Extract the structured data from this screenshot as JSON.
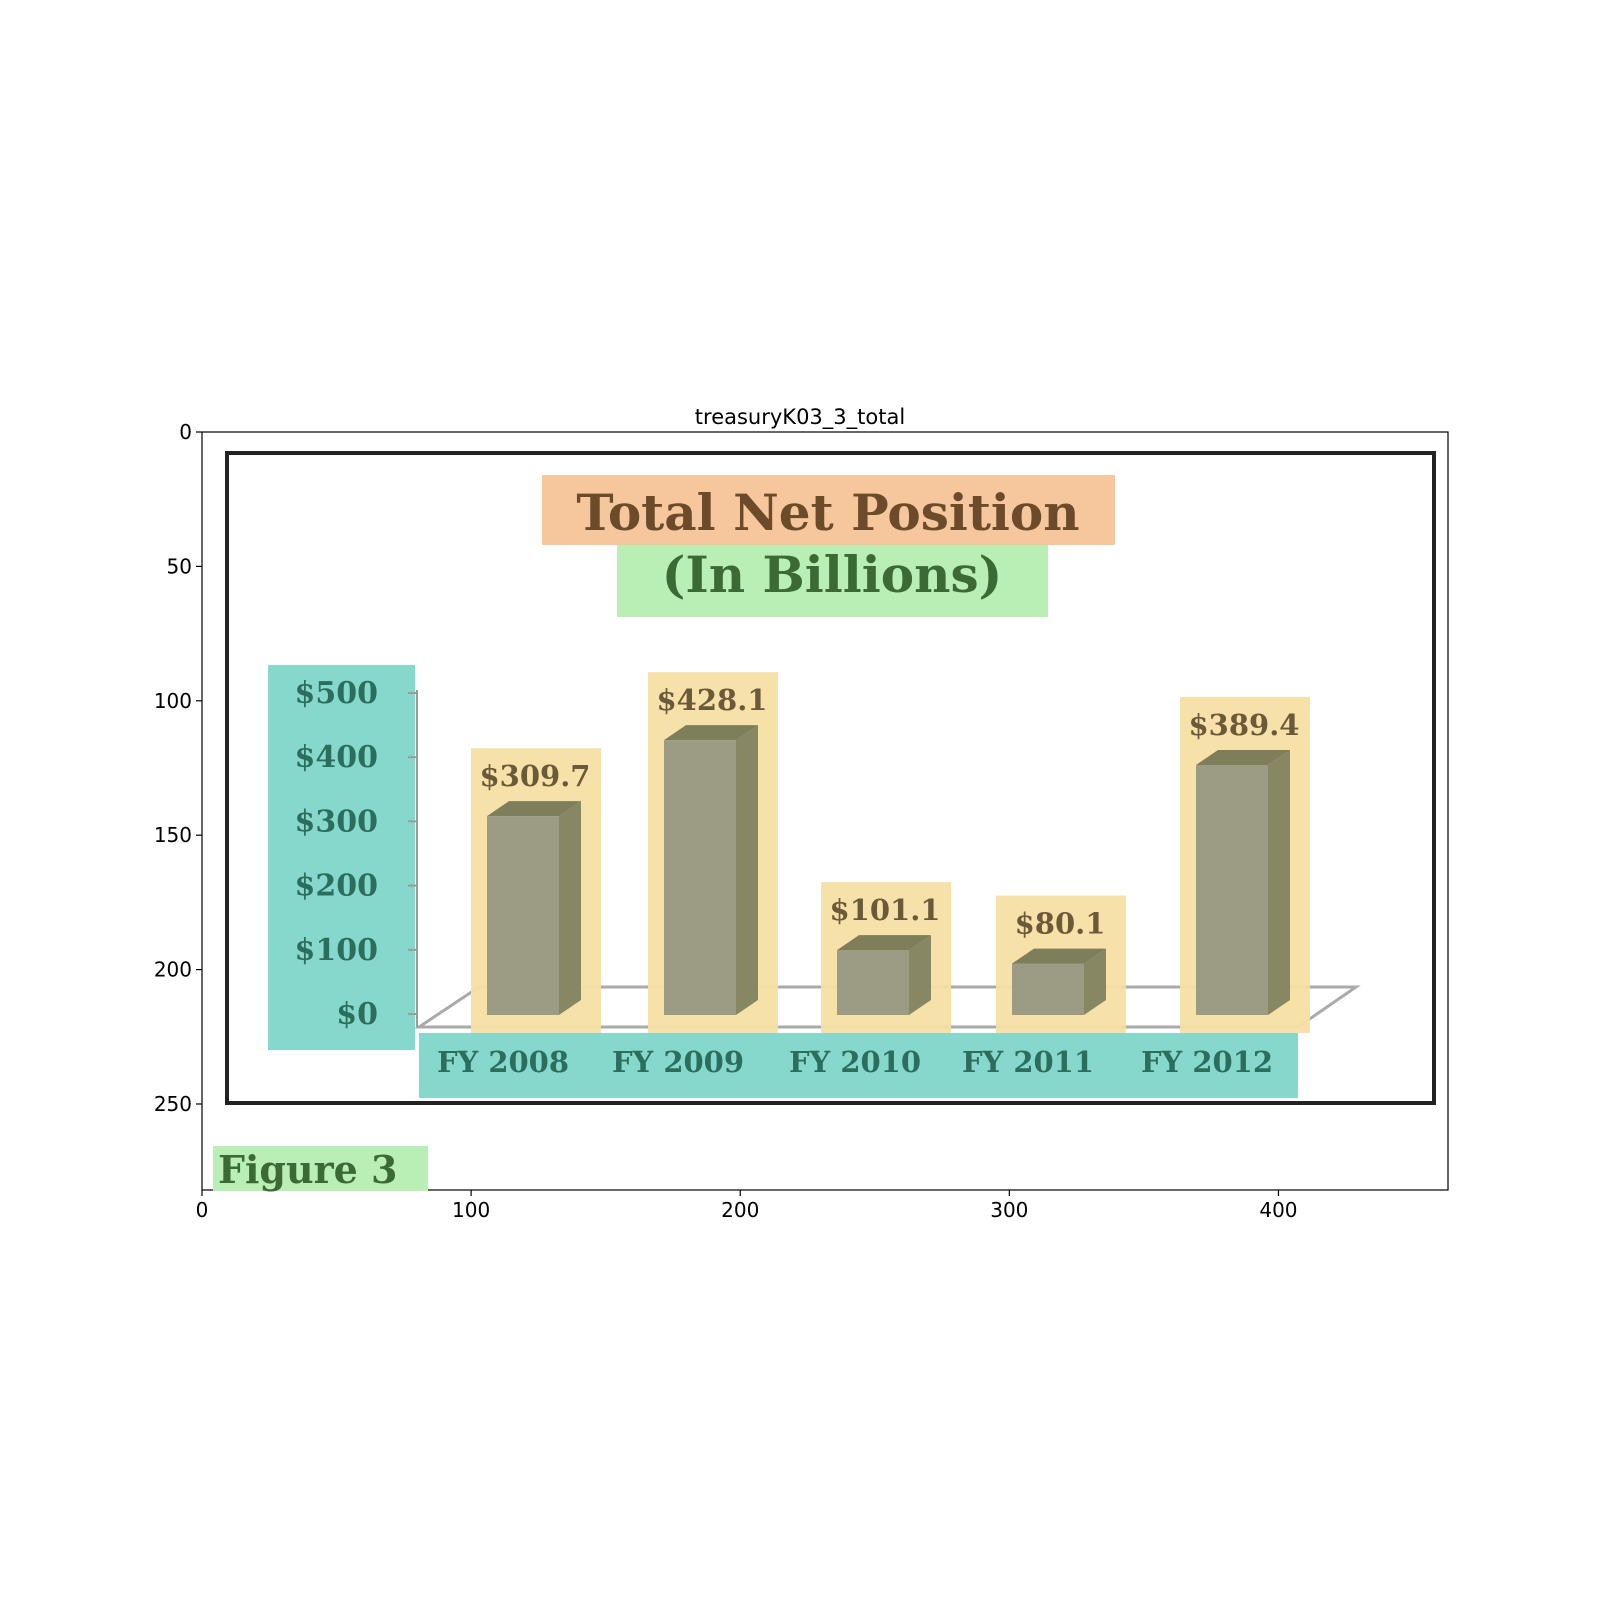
{
  "plot": {
    "title": "treasuryK03_3_total",
    "x_ticks": [
      "0",
      "100",
      "200",
      "300",
      "400"
    ],
    "y_ticks": [
      "0",
      "50",
      "100",
      "150",
      "200",
      "250"
    ],
    "x_range": [
      0,
      463
    ],
    "y_range": [
      0,
      282
    ]
  },
  "figure": {
    "caption": "Figure 3"
  },
  "colors": {
    "title_box": "#f6c79c",
    "subtitle_box": "#b9efb5",
    "axis_box": "#86d8cc",
    "value_box": "#f6dfa4",
    "bar_front": "#9c9c84",
    "bar_side": "#878764",
    "bar_top": "#7e7e5a",
    "title_text": "#6b4b2a",
    "subtitle_text": "#3b6a35",
    "axis_text": "#2c6e5e",
    "value_text": "#6b5a3a"
  },
  "chart_data": {
    "type": "bar",
    "title": "Total Net Position",
    "subtitle": "(In Billions)",
    "categories": [
      "FY 2008",
      "FY 2009",
      "FY 2010",
      "FY 2011",
      "FY 2012"
    ],
    "values": [
      309.7,
      428.1,
      101.1,
      80.1,
      389.4
    ],
    "value_labels": [
      "$309.7",
      "$428.1",
      "$101.1",
      "$80.1",
      "$389.4"
    ],
    "y_tick_labels": [
      "$500",
      "$400",
      "$300",
      "$200",
      "$100",
      "$0"
    ],
    "ylim": [
      0,
      500
    ],
    "xlabel": "",
    "ylabel": "",
    "grid": false,
    "legend": "none"
  }
}
